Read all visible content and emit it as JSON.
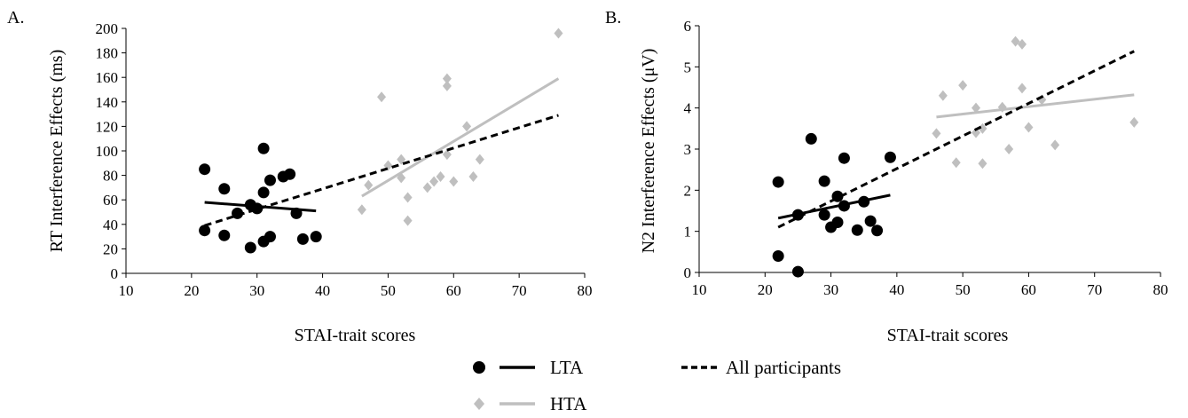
{
  "legend": {
    "lta_label": "LTA",
    "hta_label": "HTA",
    "all_label": "All participants"
  },
  "colors": {
    "lta": "#000000",
    "hta": "#bfbfbf",
    "all": "#000000"
  },
  "chart_data": [
    {
      "type": "scatter",
      "panel": "A.",
      "xlabel": "STAI-trait scores",
      "ylabel": "RT Interference Effects (ms)",
      "xlim": [
        10,
        80
      ],
      "ylim": [
        0,
        200
      ],
      "xticks": [
        10,
        20,
        30,
        40,
        50,
        60,
        70,
        80
      ],
      "yticks": [
        0,
        20,
        40,
        60,
        80,
        100,
        120,
        140,
        160,
        180,
        200
      ],
      "grid": false,
      "series": [
        {
          "name": "LTA",
          "marker": "circle",
          "points": [
            [
              22,
              85
            ],
            [
              22,
              35
            ],
            [
              25,
              69
            ],
            [
              25,
              31
            ],
            [
              27,
              49
            ],
            [
              29,
              56
            ],
            [
              29,
              21
            ],
            [
              30,
              53
            ],
            [
              31,
              66
            ],
            [
              31,
              102
            ],
            [
              31,
              26
            ],
            [
              32,
              76
            ],
            [
              32,
              30
            ],
            [
              34,
              79
            ],
            [
              35,
              81
            ],
            [
              36,
              49
            ],
            [
              37,
              28
            ],
            [
              39,
              30
            ]
          ],
          "trend": [
            [
              22,
              58
            ],
            [
              39,
              51
            ]
          ],
          "trend_style": "solid"
        },
        {
          "name": "HTA",
          "marker": "diamond",
          "points": [
            [
              46,
              52
            ],
            [
              47,
              72
            ],
            [
              49,
              144
            ],
            [
              50,
              88
            ],
            [
              52,
              93
            ],
            [
              52,
              78
            ],
            [
              53,
              62
            ],
            [
              53,
              43
            ],
            [
              56,
              70
            ],
            [
              57,
              75
            ],
            [
              58,
              79
            ],
            [
              59,
              159
            ],
            [
              59,
              153
            ],
            [
              59,
              97
            ],
            [
              60,
              75
            ],
            [
              62,
              120
            ],
            [
              63,
              79
            ],
            [
              64,
              93
            ],
            [
              76,
              196
            ]
          ],
          "trend": [
            [
              46,
              63
            ],
            [
              76,
              159
            ]
          ],
          "trend_style": "solid"
        },
        {
          "name": "All participants",
          "trend": [
            [
              22,
              39
            ],
            [
              76,
              129
            ]
          ],
          "trend_style": "dashed"
        }
      ]
    },
    {
      "type": "scatter",
      "panel": "B.",
      "xlabel": "STAI-trait scores",
      "ylabel": "N2 Interference Effects (μV)",
      "xlim": [
        10,
        80
      ],
      "ylim": [
        0,
        6
      ],
      "xticks": [
        10,
        20,
        30,
        40,
        50,
        60,
        70,
        80
      ],
      "yticks": [
        0,
        1,
        2,
        3,
        4,
        5,
        6
      ],
      "grid": false,
      "series": [
        {
          "name": "LTA",
          "marker": "circle",
          "points": [
            [
              22,
              2.2
            ],
            [
              22,
              0.4
            ],
            [
              25,
              1.4
            ],
            [
              25,
              0.02
            ],
            [
              27,
              3.25
            ],
            [
              29,
              2.22
            ],
            [
              29,
              1.4
            ],
            [
              30,
              1.1
            ],
            [
              31,
              1.85
            ],
            [
              31,
              1.22
            ],
            [
              32,
              2.78
            ],
            [
              32,
              1.62
            ],
            [
              34,
              1.03
            ],
            [
              35,
              1.72
            ],
            [
              36,
              1.25
            ],
            [
              37,
              1.02
            ],
            [
              39,
              2.8
            ]
          ],
          "trend": [
            [
              22,
              1.32
            ],
            [
              39,
              1.88
            ]
          ],
          "trend_style": "solid"
        },
        {
          "name": "HTA",
          "marker": "diamond",
          "points": [
            [
              46,
              3.38
            ],
            [
              47,
              4.3
            ],
            [
              49,
              2.67
            ],
            [
              50,
              4.55
            ],
            [
              52,
              4.0
            ],
            [
              52,
              3.4
            ],
            [
              53,
              2.65
            ],
            [
              53,
              3.5
            ],
            [
              56,
              4.02
            ],
            [
              57,
              3.0
            ],
            [
              58,
              5.62
            ],
            [
              59,
              5.55
            ],
            [
              59,
              4.48
            ],
            [
              60,
              3.53
            ],
            [
              62,
              4.2
            ],
            [
              64,
              3.1
            ],
            [
              76,
              3.65
            ]
          ],
          "trend": [
            [
              46,
              3.78
            ],
            [
              76,
              4.32
            ]
          ],
          "trend_style": "solid"
        },
        {
          "name": "All participants",
          "trend": [
            [
              22,
              1.1
            ],
            [
              76,
              5.38
            ]
          ],
          "trend_style": "dashed"
        }
      ]
    }
  ]
}
